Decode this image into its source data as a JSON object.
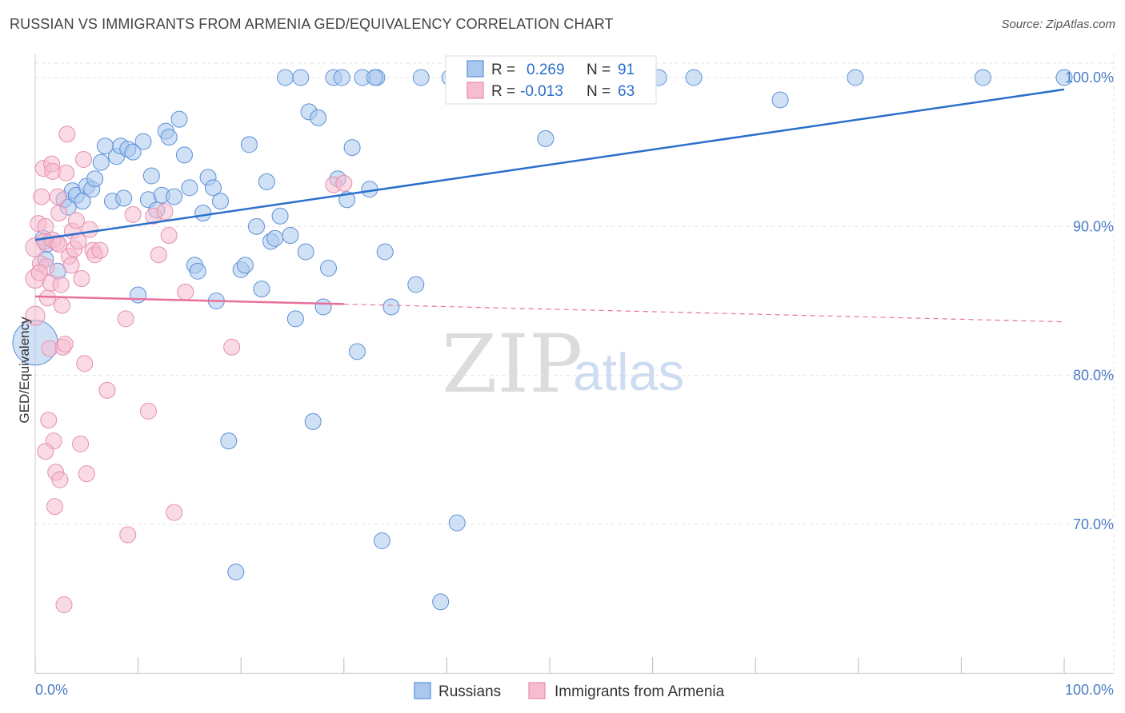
{
  "title": "RUSSIAN VS IMMIGRANTS FROM ARMENIA GED/EQUIVALENCY CORRELATION CHART",
  "source": "Source: ZipAtlas.com",
  "watermark": {
    "zip": "ZIP",
    "atlas": "atlas"
  },
  "colors": {
    "blue_fill": "#aac8ee",
    "blue_stroke": "#5b8fd6",
    "blue_line": "#2b6fcc",
    "pink_fill": "#f6bcd0",
    "pink_stroke": "#e58fae",
    "pink_line": "#e8709a",
    "grid": "#e3e3e3",
    "label": "#4a7cc7"
  },
  "legend_top": [
    {
      "r_label": "R =",
      "r_value": "0.269",
      "n_label": "N =",
      "n_value": "91"
    },
    {
      "r_label": "R =",
      "r_value": "-0.013",
      "n_label": "N =",
      "n_value": "63"
    }
  ],
  "legend_bottom": [
    "Russians",
    "Immigrants from Armenia"
  ],
  "chart_data": {
    "type": "scatter",
    "title": "RUSSIAN VS IMMIGRANTS FROM ARMENIA GED/EQUIVALENCY CORRELATION CHART",
    "xlabel": "",
    "ylabel": "GED/Equivalency",
    "xlim": [
      0,
      100
    ],
    "ylim": [
      60,
      101.5
    ],
    "x_tick_labels": [
      "0.0%",
      "100.0%"
    ],
    "y_ticks": [
      70,
      80,
      90,
      100
    ],
    "y_tick_labels": [
      "70.0%",
      "80.0%",
      "90.0%",
      "100.0%"
    ],
    "grid": true,
    "legend_placement": "top-center",
    "series": [
      {
        "name": "Russians",
        "r": 0.269,
        "n": 91,
        "trend": {
          "x": [
            0,
            100
          ],
          "y": [
            89.1,
            99.2
          ],
          "dashed_from": null
        },
        "points": [
          [
            0,
            82.2,
            28
          ],
          [
            0.8,
            89.2,
            10
          ],
          [
            1.1,
            88.8,
            10
          ],
          [
            2.2,
            87.0,
            10
          ],
          [
            1.0,
            87.8,
            10
          ],
          [
            2.8,
            91.8,
            10
          ],
          [
            3.2,
            91.3,
            10
          ],
          [
            3.6,
            92.4,
            10
          ],
          [
            4.0,
            92.1,
            10
          ],
          [
            4.6,
            91.7,
            10
          ],
          [
            5.0,
            92.7,
            10
          ],
          [
            5.5,
            92.5,
            10
          ],
          [
            5.8,
            93.2,
            10
          ],
          [
            6.4,
            94.3,
            10
          ],
          [
            6.8,
            95.4,
            10
          ],
          [
            7.5,
            91.7,
            10
          ],
          [
            7.9,
            94.7,
            10
          ],
          [
            8.3,
            95.4,
            10
          ],
          [
            8.6,
            91.9,
            10
          ],
          [
            9.0,
            95.2,
            10
          ],
          [
            9.5,
            95.0,
            10
          ],
          [
            10.0,
            85.4,
            10
          ],
          [
            10.5,
            95.7,
            10
          ],
          [
            11.0,
            91.8,
            10
          ],
          [
            11.3,
            93.4,
            10
          ],
          [
            11.8,
            91.1,
            10
          ],
          [
            12.3,
            92.1,
            10
          ],
          [
            12.7,
            96.4,
            10
          ],
          [
            13.0,
            96.0,
            10
          ],
          [
            13.5,
            92.0,
            10
          ],
          [
            14.0,
            97.2,
            10
          ],
          [
            14.5,
            94.8,
            10
          ],
          [
            15.0,
            92.6,
            10
          ],
          [
            15.5,
            87.4,
            10
          ],
          [
            15.8,
            87.0,
            10
          ],
          [
            16.3,
            90.9,
            10
          ],
          [
            16.8,
            93.3,
            10
          ],
          [
            17.3,
            92.6,
            10
          ],
          [
            17.6,
            85.0,
            10
          ],
          [
            18.0,
            91.7,
            10
          ],
          [
            18.8,
            75.6,
            10
          ],
          [
            19.5,
            66.8,
            10
          ],
          [
            20.0,
            87.1,
            10
          ],
          [
            20.4,
            87.4,
            10
          ],
          [
            20.8,
            95.5,
            10
          ],
          [
            21.5,
            90.0,
            10
          ],
          [
            22.0,
            85.8,
            10
          ],
          [
            22.5,
            93.0,
            10
          ],
          [
            22.9,
            89.0,
            10
          ],
          [
            23.3,
            89.2,
            10
          ],
          [
            23.8,
            90.7,
            10
          ],
          [
            24.3,
            100.0,
            10
          ],
          [
            24.8,
            89.4,
            10
          ],
          [
            25.3,
            83.8,
            10
          ],
          [
            25.8,
            100.0,
            10
          ],
          [
            26.3,
            88.3,
            10
          ],
          [
            26.6,
            97.7,
            10
          ],
          [
            27.0,
            76.9,
            10
          ],
          [
            27.5,
            97.3,
            10
          ],
          [
            28.0,
            84.6,
            10
          ],
          [
            28.5,
            87.2,
            10
          ],
          [
            29.0,
            100.0,
            10
          ],
          [
            29.4,
            93.2,
            10
          ],
          [
            29.8,
            100.0,
            10
          ],
          [
            30.3,
            91.8,
            10
          ],
          [
            30.8,
            95.3,
            10
          ],
          [
            31.3,
            81.6,
            10
          ],
          [
            31.8,
            100.0,
            10
          ],
          [
            32.5,
            92.5,
            10
          ],
          [
            33.2,
            100.0,
            10
          ],
          [
            33.7,
            68.9,
            10
          ],
          [
            34.0,
            88.3,
            10
          ],
          [
            34.6,
            84.6,
            10
          ],
          [
            37.0,
            86.1,
            10
          ],
          [
            37.5,
            100.0,
            10
          ],
          [
            39.4,
            64.8,
            10
          ],
          [
            40.3,
            100.0,
            10
          ],
          [
            41.0,
            70.1,
            10
          ],
          [
            43.4,
            100.0,
            10
          ],
          [
            46.4,
            100.0,
            10
          ],
          [
            49.6,
            95.9,
            10
          ],
          [
            52.2,
            100.0,
            10
          ],
          [
            56.9,
            100.0,
            10
          ],
          [
            59.1,
            100.0,
            10
          ],
          [
            60.6,
            100.0,
            10
          ],
          [
            64.0,
            100.0,
            10
          ],
          [
            72.4,
            98.5,
            10
          ],
          [
            79.7,
            100.0,
            10
          ],
          [
            92.1,
            100.0,
            10
          ],
          [
            100.0,
            100.0,
            10
          ],
          [
            33.0,
            100.0,
            10
          ]
        ]
      },
      {
        "name": "Immigrants from Armenia",
        "r": -0.013,
        "n": 63,
        "trend": {
          "x": [
            0,
            100
          ],
          "y": [
            85.3,
            83.6
          ],
          "dashed_from": 30
        },
        "points": [
          [
            0,
            84.0,
            12
          ],
          [
            0,
            86.5,
            12
          ],
          [
            0,
            88.6,
            12
          ],
          [
            0.3,
            90.2,
            10
          ],
          [
            0.5,
            87.5,
            10
          ],
          [
            0.6,
            92.0,
            10
          ],
          [
            0.8,
            93.9,
            10
          ],
          [
            0.9,
            89.0,
            10
          ],
          [
            1.0,
            90.0,
            10
          ],
          [
            1.1,
            87.3,
            10
          ],
          [
            1.2,
            85.2,
            10
          ],
          [
            1.3,
            77.0,
            10
          ],
          [
            1.4,
            81.8,
            10
          ],
          [
            1.5,
            86.2,
            10
          ],
          [
            1.6,
            94.2,
            10
          ],
          [
            1.7,
            93.7,
            10
          ],
          [
            1.8,
            75.6,
            10
          ],
          [
            1.9,
            71.2,
            10
          ],
          [
            2.0,
            73.5,
            10
          ],
          [
            2.1,
            88.9,
            10
          ],
          [
            2.2,
            92.0,
            10
          ],
          [
            2.3,
            90.9,
            10
          ],
          [
            2.4,
            73.0,
            10
          ],
          [
            2.5,
            86.1,
            10
          ],
          [
            2.6,
            84.7,
            10
          ],
          [
            2.7,
            81.9,
            10
          ],
          [
            2.8,
            64.6,
            10
          ],
          [
            2.9,
            82.1,
            10
          ],
          [
            3.0,
            93.6,
            10
          ],
          [
            3.1,
            96.2,
            10
          ],
          [
            3.3,
            88.0,
            10
          ],
          [
            3.5,
            87.4,
            10
          ],
          [
            3.6,
            89.7,
            10
          ],
          [
            3.8,
            88.5,
            10
          ],
          [
            4.0,
            90.4,
            10
          ],
          [
            4.2,
            89.0,
            10
          ],
          [
            4.4,
            75.4,
            10
          ],
          [
            4.5,
            86.5,
            10
          ],
          [
            4.7,
            94.5,
            10
          ],
          [
            4.8,
            80.8,
            10
          ],
          [
            5.0,
            73.4,
            10
          ],
          [
            5.3,
            89.8,
            10
          ],
          [
            5.6,
            88.4,
            10
          ],
          [
            5.8,
            88.1,
            10
          ],
          [
            1.0,
            74.9,
            10
          ],
          [
            6.3,
            88.4,
            10
          ],
          [
            7.0,
            79.0,
            10
          ],
          [
            8.8,
            83.8,
            10
          ],
          [
            9.0,
            69.3,
            10
          ],
          [
            9.5,
            90.8,
            10
          ],
          [
            11.0,
            77.6,
            10
          ],
          [
            11.5,
            90.7,
            10
          ],
          [
            12.0,
            88.1,
            10
          ],
          [
            12.6,
            91.0,
            10
          ],
          [
            13.0,
            89.4,
            10
          ],
          [
            13.5,
            70.8,
            10
          ],
          [
            14.6,
            85.6,
            10
          ],
          [
            19.1,
            81.9,
            10
          ],
          [
            29.0,
            92.8,
            10
          ],
          [
            30.0,
            92.9,
            10
          ],
          [
            1.7,
            89.1,
            10
          ],
          [
            0.4,
            86.9,
            10
          ],
          [
            2.3,
            88.8,
            10
          ]
        ]
      }
    ]
  }
}
